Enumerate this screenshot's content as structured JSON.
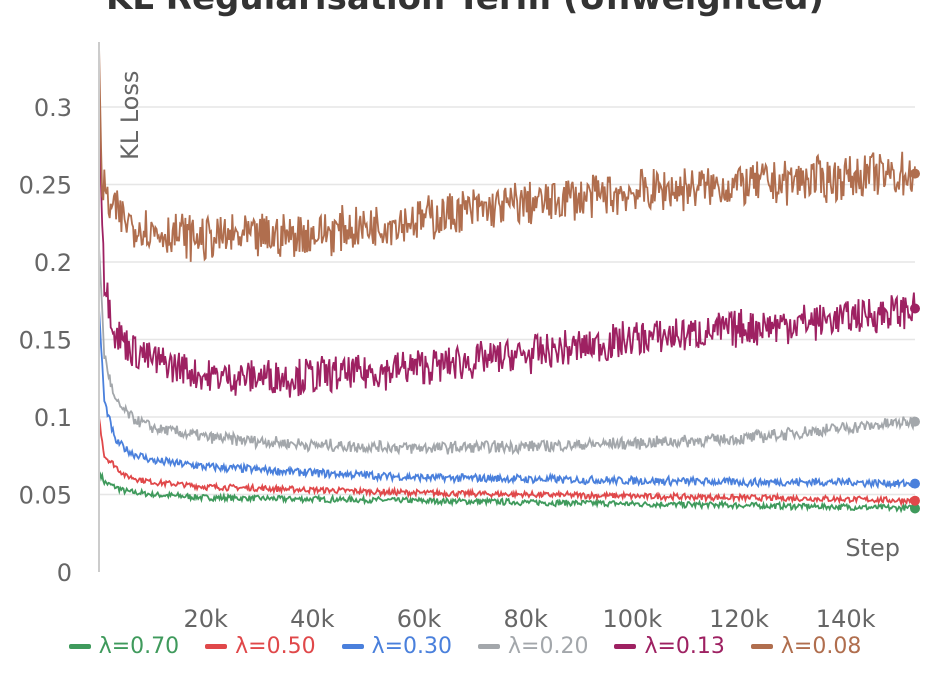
{
  "chart_data": {
    "type": "line",
    "title": "KL Regularisation Term (Unweighted)",
    "xlabel": "Step",
    "ylabel": "KL Loss",
    "xlim": [
      0,
      153000
    ],
    "ylim": [
      0,
      0.34
    ],
    "xticks": [
      "20k",
      "40k",
      "60k",
      "80k",
      "100k",
      "120k",
      "140k"
    ],
    "xtick_values": [
      20000,
      40000,
      60000,
      80000,
      100000,
      120000,
      140000
    ],
    "yticks": [
      "0",
      "0.05",
      "0.1",
      "0.15",
      "0.2",
      "0.25",
      "0.3"
    ],
    "ytick_values": [
      0,
      0.05,
      0.1,
      0.15,
      0.2,
      0.25,
      0.3
    ],
    "grid": true,
    "legend_placement": "bottom",
    "series": [
      {
        "name": "λ=0.70",
        "color": "#3f9a5c",
        "noise": 0.0015,
        "x": [
          0,
          1000,
          5000,
          10000,
          20000,
          40000,
          60000,
          80000,
          100000,
          120000,
          140000,
          153000
        ],
        "values": [
          0.065,
          0.058,
          0.052,
          0.05,
          0.048,
          0.047,
          0.046,
          0.045,
          0.044,
          0.043,
          0.042,
          0.041
        ]
      },
      {
        "name": "λ=0.50",
        "color": "#e0484a",
        "noise": 0.0015,
        "x": [
          0,
          1000,
          5000,
          10000,
          20000,
          40000,
          60000,
          80000,
          100000,
          120000,
          140000,
          153000
        ],
        "values": [
          0.1,
          0.075,
          0.062,
          0.058,
          0.055,
          0.053,
          0.051,
          0.05,
          0.049,
          0.048,
          0.047,
          0.046
        ]
      },
      {
        "name": "λ=0.30",
        "color": "#4a80dc",
        "noise": 0.002,
        "x": [
          0,
          1000,
          3000,
          6000,
          10000,
          20000,
          40000,
          60000,
          80000,
          100000,
          120000,
          140000,
          153000
        ],
        "values": [
          0.17,
          0.11,
          0.085,
          0.077,
          0.072,
          0.068,
          0.064,
          0.061,
          0.06,
          0.059,
          0.058,
          0.058,
          0.057
        ]
      },
      {
        "name": "λ=0.20",
        "color": "#a3a7ab",
        "noise": 0.003,
        "x": [
          0,
          1000,
          3000,
          6000,
          10000,
          20000,
          40000,
          60000,
          80000,
          100000,
          120000,
          140000,
          153000
        ],
        "values": [
          0.21,
          0.14,
          0.11,
          0.1,
          0.093,
          0.087,
          0.082,
          0.08,
          0.081,
          0.083,
          0.086,
          0.093,
          0.097
        ]
      },
      {
        "name": "λ=0.13",
        "color": "#9e2162",
        "noise": 0.009,
        "x": [
          0,
          1000,
          3000,
          6000,
          10000,
          20000,
          40000,
          60000,
          80000,
          100000,
          120000,
          140000,
          153000
        ],
        "values": [
          0.3,
          0.19,
          0.155,
          0.145,
          0.137,
          0.126,
          0.126,
          0.132,
          0.14,
          0.15,
          0.157,
          0.164,
          0.17
        ]
      },
      {
        "name": "λ=0.08",
        "color": "#b06e4e",
        "noise": 0.011,
        "x": [
          0,
          500,
          2000,
          6000,
          10000,
          20000,
          40000,
          60000,
          80000,
          100000,
          120000,
          140000,
          153000
        ],
        "values": [
          0.34,
          0.25,
          0.235,
          0.225,
          0.22,
          0.215,
          0.218,
          0.228,
          0.238,
          0.245,
          0.25,
          0.255,
          0.257
        ]
      }
    ]
  }
}
